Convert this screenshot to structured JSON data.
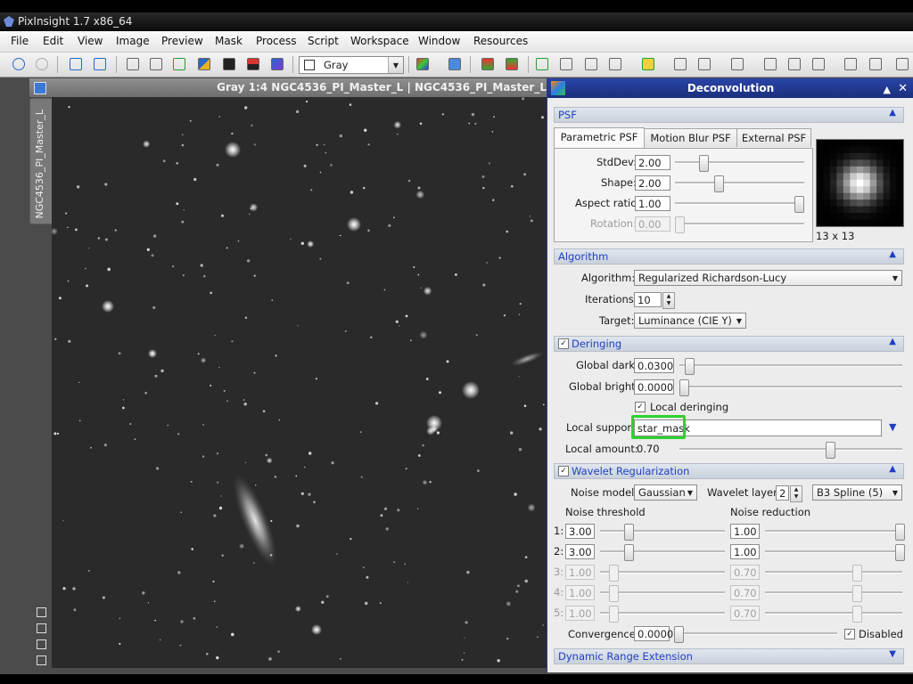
{
  "app": {
    "title": "PixInsight 1.7 x86_64"
  },
  "menu": [
    "File",
    "Edit",
    "View",
    "Image",
    "Preview",
    "Mask",
    "Process",
    "Script",
    "Workspace",
    "Window",
    "Resources"
  ],
  "toolbar": {
    "colorspace": "Gray"
  },
  "image_window": {
    "title": "Gray 1:4 NGC4536_PI_Master_L | NGC4536_PI_Master_L",
    "side_tab": "NGC4536_PI_Master_L"
  },
  "panel": {
    "title": "Deconvolution",
    "psf": {
      "section": "PSF",
      "tabs": [
        "Parametric PSF",
        "Motion Blur PSF",
        "External PSF"
      ],
      "stddev_label": "StdDev:",
      "stddev": "2.00",
      "shape_label": "Shape:",
      "shape": "2.00",
      "aspect_label": "Aspect ratio:",
      "aspect": "1.00",
      "rotation_label": "Rotation:",
      "rotation": "0.00",
      "size": "13 x 13"
    },
    "algorithm": {
      "section": "Algorithm",
      "algorithm_label": "Algorithm:",
      "algorithm": "Regularized Richardson-Lucy",
      "iterations_label": "Iterations:",
      "iterations": "10",
      "target_label": "Target:",
      "target": "Luminance (CIE Y)"
    },
    "deringing": {
      "section": "Deringing",
      "global_dark_label": "Global dark:",
      "global_dark": "0.0300",
      "global_bright_label": "Global bright:",
      "global_bright": "0.0000",
      "local_deringing": "Local deringing",
      "local_support_label": "Local support:",
      "local_support": "star_mask",
      "local_amount_label": "Local amount:",
      "local_amount": "0.70"
    },
    "wavelet": {
      "section": "Wavelet Regularization",
      "noise_model_label": "Noise model:",
      "noise_model": "Gaussian",
      "layers_label": "Wavelet layers:",
      "layers": "2",
      "scaling": "B3 Spline (5)",
      "threshold_header": "Noise threshold",
      "reduction_header": "Noise reduction",
      "rows": [
        {
          "n": "1:",
          "threshold": "3.00",
          "reduction": "1.00"
        },
        {
          "n": "2:",
          "threshold": "3.00",
          "reduction": "1.00"
        },
        {
          "n": "3:",
          "threshold": "1.00",
          "reduction": "0.70"
        },
        {
          "n": "4:",
          "threshold": "1.00",
          "reduction": "0.70"
        },
        {
          "n": "5:",
          "threshold": "1.00",
          "reduction": "0.70"
        }
      ],
      "convergence_label": "Convergence:",
      "convergence": "0.0000",
      "disabled": "Disabled"
    },
    "dre": {
      "section": "Dynamic Range Extension"
    }
  }
}
